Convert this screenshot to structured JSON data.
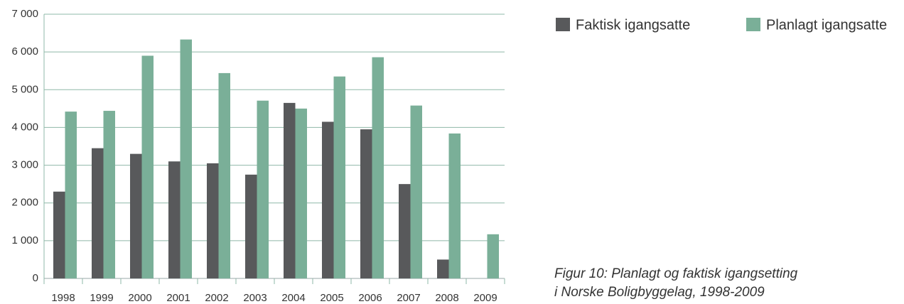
{
  "chart_data": {
    "type": "bar",
    "categories": [
      "1998",
      "1999",
      "2000",
      "2001",
      "2002",
      "2003",
      "2004",
      "2005",
      "2006",
      "2007",
      "2008",
      "2009"
    ],
    "series": [
      {
        "name": "Faktisk igangsatte",
        "color": "#58595b",
        "values": [
          2300,
          3450,
          3300,
          3100,
          3050,
          2750,
          4650,
          4150,
          3950,
          2500,
          500,
          null
        ]
      },
      {
        "name": "Planlagt igangsatte",
        "color": "#7aaf98",
        "values": [
          4420,
          4440,
          5900,
          6330,
          5440,
          4710,
          4500,
          5350,
          5860,
          4580,
          3840,
          1170
        ]
      }
    ],
    "ylim": [
      0,
      7000
    ],
    "yticks": [
      0,
      {
        "value": 1000,
        "label": "1 000"
      },
      {
        "value": 2000,
        "label": "2 000"
      },
      {
        "value": 3000,
        "label": "3 000"
      },
      {
        "value": 4000,
        "label": "4 000"
      },
      {
        "value": 5000,
        "label": "5 000"
      },
      {
        "value": 6000,
        "label": "6 000"
      },
      {
        "value": 7000,
        "label": "7 000"
      }
    ],
    "grid": true,
    "caption": [
      "Figur 10: Planlagt og faktisk igangsetting",
      "i Norske Boligbyggelag, 1998-2009"
    ]
  }
}
